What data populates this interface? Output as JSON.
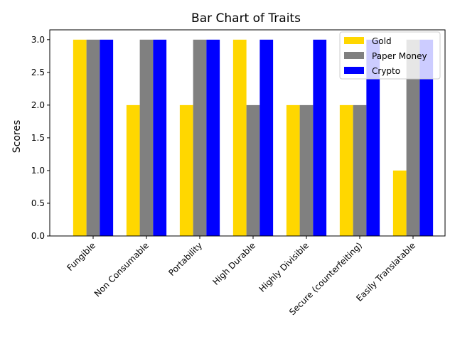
{
  "chart_data": {
    "type": "bar",
    "title": "Bar Chart of Traits",
    "xlabel": "",
    "ylabel": "Scores",
    "ylim": [
      0,
      3.15
    ],
    "yticks": [
      "0.0",
      "0.5",
      "1.0",
      "1.5",
      "2.0",
      "2.5",
      "3.0"
    ],
    "categories": [
      "Fungible",
      "Non Consumable",
      "Portability",
      "High Durable",
      "Highly Divisible",
      "Secure (counterfeiting)",
      "Easily Translatable"
    ],
    "series": [
      {
        "name": "Gold",
        "color": "#FFD700",
        "values": [
          3,
          2,
          2,
          3,
          2,
          2,
          1
        ]
      },
      {
        "name": "Paper Money",
        "color": "#808080",
        "values": [
          3,
          3,
          3,
          2,
          2,
          2,
          3
        ]
      },
      {
        "name": "Crypto",
        "color": "#0000FF",
        "values": [
          3,
          3,
          3,
          3,
          3,
          3,
          3
        ]
      }
    ],
    "legend_position": "top-right",
    "grid": false
  }
}
